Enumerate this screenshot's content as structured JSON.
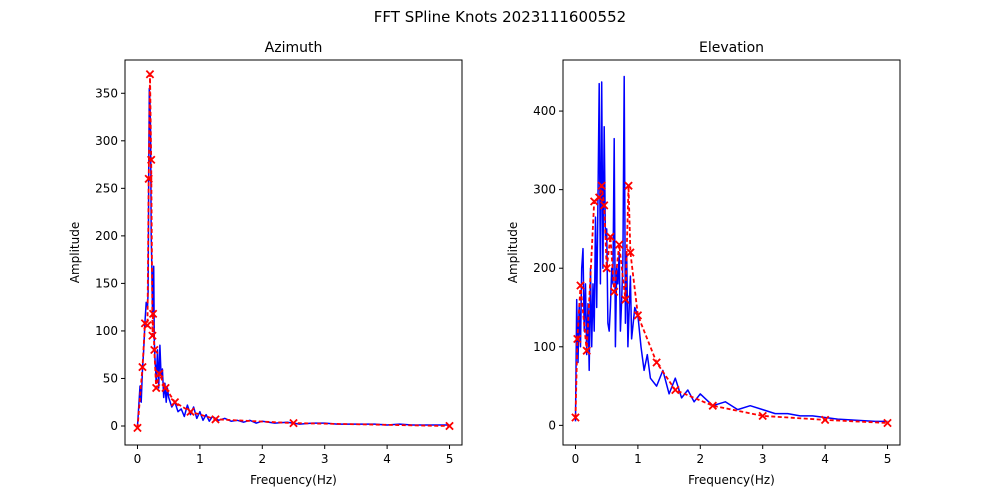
{
  "figure": {
    "title": "FFT SPline Knots 2023111600552",
    "colors": {
      "signal": "#0000ff",
      "spline": "#ff0000",
      "knot": "#ff0000",
      "axes": "#000000",
      "background": "#ffffff"
    }
  },
  "chart_data": [
    {
      "type": "line",
      "title": "Azimuth",
      "xlabel": "Frequency(Hz)",
      "ylabel": "Amplitude",
      "xlim": [
        -0.2,
        5.2
      ],
      "ylim": [
        -20,
        385
      ],
      "xticks": [
        0,
        1,
        2,
        3,
        4,
        5
      ],
      "xtick_labels": [
        "0",
        "1",
        "2",
        "3",
        "4",
        "5"
      ],
      "yticks": [
        0,
        50,
        100,
        150,
        200,
        250,
        300,
        350
      ],
      "ytick_labels": [
        "0",
        "50",
        "100",
        "150",
        "200",
        "250",
        "300",
        "350"
      ],
      "grid": false,
      "series": [
        {
          "style": "solid-line",
          "color": "#0000ff",
          "x": [
            0.0,
            0.02,
            0.04,
            0.06,
            0.08,
            0.1,
            0.12,
            0.14,
            0.16,
            0.17,
            0.18,
            0.19,
            0.2,
            0.21,
            0.22,
            0.23,
            0.24,
            0.25,
            0.26,
            0.27,
            0.28,
            0.29,
            0.3,
            0.32,
            0.34,
            0.36,
            0.38,
            0.4,
            0.42,
            0.44,
            0.46,
            0.48,
            0.5,
            0.55,
            0.6,
            0.65,
            0.7,
            0.75,
            0.8,
            0.85,
            0.9,
            0.95,
            1.0,
            1.05,
            1.1,
            1.15,
            1.2,
            1.3,
            1.4,
            1.5,
            1.6,
            1.7,
            1.8,
            1.9,
            2.0,
            2.2,
            2.4,
            2.6,
            2.8,
            3.0,
            3.2,
            3.4,
            3.6,
            3.8,
            4.0,
            4.2,
            4.4,
            4.6,
            4.8,
            5.0
          ],
          "y": [
            0,
            20,
            42,
            25,
            60,
            80,
            110,
            130,
            125,
            140,
            260,
            355,
            340,
            310,
            200,
            170,
            120,
            150,
            168,
            90,
            70,
            60,
            45,
            80,
            40,
            85,
            50,
            60,
            30,
            45,
            25,
            40,
            30,
            20,
            25,
            15,
            18,
            10,
            22,
            12,
            20,
            8,
            15,
            6,
            12,
            5,
            10,
            6,
            8,
            5,
            6,
            4,
            6,
            3,
            5,
            3,
            4,
            2,
            3,
            3,
            2,
            2,
            2,
            2,
            1,
            2,
            1,
            1,
            1,
            1
          ]
        },
        {
          "style": "dashed-line-with-x-markers",
          "color": "#ff0000",
          "x": [
            0.0,
            0.08,
            0.12,
            0.16,
            0.18,
            0.2,
            0.22,
            0.24,
            0.25,
            0.27,
            0.3,
            0.35,
            0.45,
            0.6,
            0.85,
            1.25,
            2.5,
            5.0
          ],
          "y": [
            -2,
            62,
            108,
            106,
            260,
            370,
            280,
            95,
            118,
            80,
            40,
            55,
            40,
            25,
            15,
            7,
            3,
            0
          ]
        }
      ]
    },
    {
      "type": "line",
      "title": "Elevation",
      "xlabel": "Frequency(Hz)",
      "ylabel": "Amplitude",
      "xlim": [
        -0.2,
        5.2
      ],
      "ylim": [
        -25,
        465
      ],
      "xticks": [
        0,
        1,
        2,
        3,
        4,
        5
      ],
      "xtick_labels": [
        "0",
        "1",
        "2",
        "3",
        "4",
        "5"
      ],
      "yticks": [
        0,
        100,
        200,
        300,
        400
      ],
      "ytick_labels": [
        "0",
        "100",
        "200",
        "300",
        "400"
      ],
      "grid": false,
      "series": [
        {
          "style": "solid-line",
          "color": "#0000ff",
          "x": [
            0.0,
            0.02,
            0.04,
            0.06,
            0.08,
            0.1,
            0.12,
            0.14,
            0.16,
            0.18,
            0.2,
            0.22,
            0.24,
            0.26,
            0.28,
            0.3,
            0.32,
            0.34,
            0.36,
            0.38,
            0.4,
            0.42,
            0.44,
            0.46,
            0.48,
            0.5,
            0.52,
            0.54,
            0.56,
            0.58,
            0.6,
            0.62,
            0.64,
            0.66,
            0.68,
            0.7,
            0.72,
            0.74,
            0.76,
            0.78,
            0.8,
            0.82,
            0.84,
            0.86,
            0.88,
            0.9,
            0.95,
            1.0,
            1.05,
            1.1,
            1.15,
            1.2,
            1.3,
            1.4,
            1.5,
            1.6,
            1.7,
            1.8,
            1.9,
            2.0,
            2.2,
            2.4,
            2.6,
            2.8,
            3.0,
            3.2,
            3.4,
            3.6,
            3.8,
            4.0,
            4.2,
            4.4,
            4.6,
            4.8,
            5.0
          ],
          "y": [
            5,
            160,
            80,
            155,
            100,
            200,
            225,
            120,
            180,
            90,
            155,
            70,
            200,
            100,
            180,
            120,
            265,
            150,
            280,
            435,
            180,
            437,
            200,
            380,
            240,
            250,
            130,
            120,
            150,
            200,
            180,
            365,
            100,
            200,
            180,
            220,
            120,
            160,
            210,
            444,
            130,
            220,
            100,
            150,
            190,
            110,
            150,
            140,
            100,
            70,
            90,
            60,
            50,
            70,
            40,
            60,
            35,
            45,
            30,
            40,
            25,
            30,
            20,
            25,
            20,
            15,
            15,
            12,
            12,
            10,
            8,
            7,
            6,
            5,
            5
          ]
        },
        {
          "style": "dashed-line-with-x-markers",
          "color": "#ff0000",
          "x": [
            0.0,
            0.03,
            0.08,
            0.18,
            0.3,
            0.38,
            0.42,
            0.46,
            0.5,
            0.56,
            0.62,
            0.7,
            0.8,
            0.85,
            0.88,
            1.0,
            1.3,
            1.6,
            2.2,
            3.0,
            4.0,
            5.0
          ],
          "y": [
            10,
            110,
            178,
            95,
            285,
            290,
            305,
            280,
            200,
            240,
            170,
            230,
            160,
            305,
            220,
            140,
            80,
            45,
            25,
            12,
            7,
            3
          ]
        }
      ]
    }
  ]
}
